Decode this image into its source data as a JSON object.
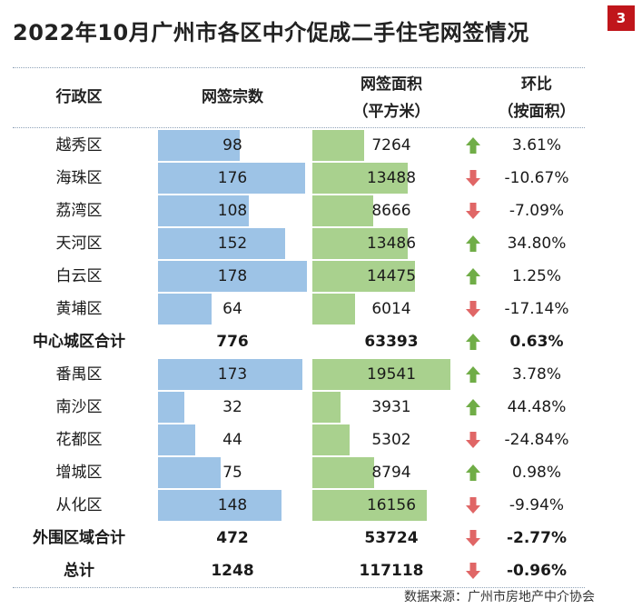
{
  "title": "2022年10月广州市各区中介促成二手住宅网签情况",
  "page_badge": "3",
  "headers": {
    "district": "行政区",
    "count": "网签宗数",
    "area_line1": "网签面积",
    "area_line2": "（平方米）",
    "change_line1": "环比",
    "change_line2": "（按面积）"
  },
  "colors": {
    "count_bar": "#9dc3e6",
    "area_bar": "#a9d18e",
    "up_arrow": "#70ad47",
    "down_arrow": "#e06666",
    "badge": "#c0161b"
  },
  "source": "数据来源：广州市房地产中介协会",
  "chart_data": {
    "type": "table",
    "title": "2022年10月广州市各区中介促成二手住宅网签情况",
    "columns": [
      "行政区",
      "网签宗数",
      "网签面积（平方米）",
      "环比（按面积）"
    ],
    "bar_max": {
      "count": 178,
      "area": 19541
    },
    "rows": [
      {
        "district": "越秀区",
        "count": "98",
        "area": "7264",
        "change": "3.61%",
        "trend": "up",
        "bars": true,
        "bold": false
      },
      {
        "district": "海珠区",
        "count": "176",
        "area": "13488",
        "change": "-10.67%",
        "trend": "down",
        "bars": true,
        "bold": false
      },
      {
        "district": "荔湾区",
        "count": "108",
        "area": "8666",
        "change": "-7.09%",
        "trend": "down",
        "bars": true,
        "bold": false
      },
      {
        "district": "天河区",
        "count": "152",
        "area": "13486",
        "change": "34.80%",
        "trend": "up",
        "bars": true,
        "bold": false
      },
      {
        "district": "白云区",
        "count": "178",
        "area": "14475",
        "change": "1.25%",
        "trend": "up",
        "bars": true,
        "bold": false
      },
      {
        "district": "黄埔区",
        "count": "64",
        "area": "6014",
        "change": "-17.14%",
        "trend": "down",
        "bars": true,
        "bold": false
      },
      {
        "district": "中心城区合计",
        "count": "776",
        "area": "63393",
        "change": "0.63%",
        "trend": "up",
        "bars": false,
        "bold": true
      },
      {
        "district": "番禺区",
        "count": "173",
        "area": "19541",
        "change": "3.78%",
        "trend": "up",
        "bars": true,
        "bold": false
      },
      {
        "district": "南沙区",
        "count": "32",
        "area": "3931",
        "change": "44.48%",
        "trend": "up",
        "bars": true,
        "bold": false
      },
      {
        "district": "花都区",
        "count": "44",
        "area": "5302",
        "change": "-24.84%",
        "trend": "down",
        "bars": true,
        "bold": false
      },
      {
        "district": "增城区",
        "count": "75",
        "area": "8794",
        "change": "0.98%",
        "trend": "up",
        "bars": true,
        "bold": false
      },
      {
        "district": "从化区",
        "count": "148",
        "area": "16156",
        "change": "-9.94%",
        "trend": "down",
        "bars": true,
        "bold": false
      },
      {
        "district": "外围区域合计",
        "count": "472",
        "area": "53724",
        "change": "-2.77%",
        "trend": "down",
        "bars": false,
        "bold": true
      },
      {
        "district": "总计",
        "count": "1248",
        "area": "117118",
        "change": "-0.96%",
        "trend": "down",
        "bars": false,
        "bold": true
      }
    ]
  }
}
